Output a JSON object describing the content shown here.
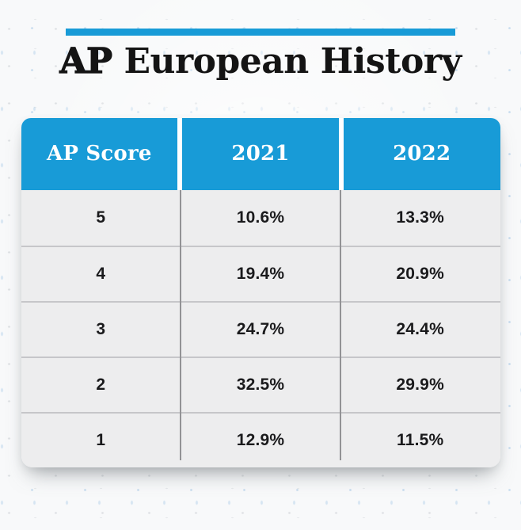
{
  "accent_color": "#189BD7",
  "row_background": "#EDEDEE",
  "title": {
    "bold": "AP",
    "rest": "European History"
  },
  "table": {
    "headers": [
      "AP Score",
      "2021",
      "2022"
    ],
    "rows": [
      [
        "5",
        "10.6%",
        "13.3%"
      ],
      [
        "4",
        "19.4%",
        "20.9%"
      ],
      [
        "3",
        "24.7%",
        "24.4%"
      ],
      [
        "2",
        "32.5%",
        "29.9%"
      ],
      [
        "1",
        "12.9%",
        "11.5%"
      ]
    ]
  },
  "chart_data": {
    "type": "table",
    "title": "AP European History",
    "columns": [
      "AP Score",
      "2021",
      "2022"
    ],
    "categories": [
      "5",
      "4",
      "3",
      "2",
      "1"
    ],
    "series": [
      {
        "name": "2021",
        "values": [
          10.6,
          19.4,
          24.7,
          32.5,
          12.9
        ]
      },
      {
        "name": "2022",
        "values": [
          13.3,
          20.9,
          24.4,
          29.9,
          11.5
        ]
      }
    ],
    "value_unit": "%"
  }
}
